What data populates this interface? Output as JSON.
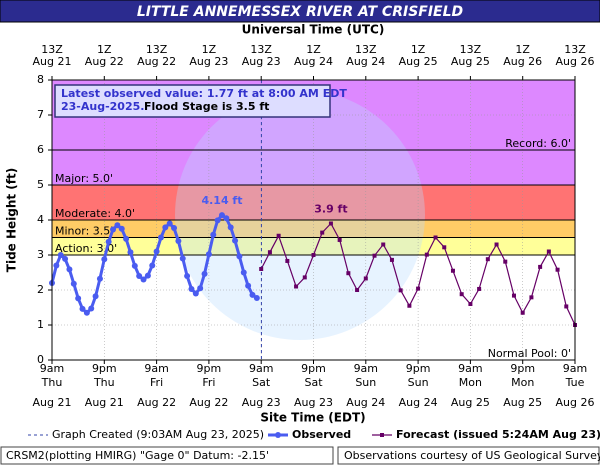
{
  "chart_data": {
    "type": "line",
    "title": "LITTLE ANNEMESSEX RIVER AT CRISFIELD",
    "x_label": "Site Time (EDT)",
    "x2_label": "Universal Time (UTC)",
    "y_label": "Tide Height (ft)",
    "xlim": [
      "Aug 21 09:00",
      "Aug 26 09:00"
    ],
    "ylim": [
      0,
      8
    ],
    "yticks": [
      0,
      1,
      2,
      3,
      4,
      5,
      6,
      7,
      8
    ],
    "grid": true,
    "xticks": [
      {
        "value": "Aug 21 09:00",
        "label": [
          "9am",
          "Thu",
          "Aug 21"
        ]
      },
      {
        "value": "Aug 21 21:00",
        "label": [
          "9pm",
          "Thu",
          "Aug 21"
        ]
      },
      {
        "value": "Aug 22 09:00",
        "label": [
          "9am",
          "Fri",
          "Aug 22"
        ]
      },
      {
        "value": "Aug 22 21:00",
        "label": [
          "9pm",
          "Fri",
          "Aug 22"
        ]
      },
      {
        "value": "Aug 23 09:00",
        "label": [
          "9am",
          "Sat",
          "Aug 23"
        ]
      },
      {
        "value": "Aug 23 21:00",
        "label": [
          "9pm",
          "Sat",
          "Aug 23"
        ]
      },
      {
        "value": "Aug 24 09:00",
        "label": [
          "9am",
          "Sun",
          "Aug 24"
        ]
      },
      {
        "value": "Aug 24 21:00",
        "label": [
          "9pm",
          "Sun",
          "Aug 24"
        ]
      },
      {
        "value": "Aug 25 09:00",
        "label": [
          "9am",
          "Mon",
          "Aug 25"
        ]
      },
      {
        "value": "Aug 25 21:00",
        "label": [
          "9pm",
          "Mon",
          "Aug 25"
        ]
      },
      {
        "value": "Aug 26 09:00",
        "label": [
          "9am",
          "Tue",
          "Aug 26"
        ]
      }
    ],
    "x2ticks": [
      {
        "value": "Aug 21 09:00",
        "label": [
          "13Z",
          "Aug 21"
        ]
      },
      {
        "value": "Aug 21 21:00",
        "label": [
          "1Z",
          "Aug 22"
        ]
      },
      {
        "value": "Aug 22 09:00",
        "label": [
          "13Z",
          "Aug 22"
        ]
      },
      {
        "value": "Aug 22 21:00",
        "label": [
          "1Z",
          "Aug 23"
        ]
      },
      {
        "value": "Aug 23 09:00",
        "label": [
          "13Z",
          "Aug 23"
        ]
      },
      {
        "value": "Aug 23 21:00",
        "label": [
          "1Z",
          "Aug 24"
        ]
      },
      {
        "value": "Aug 24 09:00",
        "label": [
          "13Z",
          "Aug 24"
        ]
      },
      {
        "value": "Aug 24 21:00",
        "label": [
          "1Z",
          "Aug 25"
        ]
      },
      {
        "value": "Aug 25 09:00",
        "label": [
          "13Z",
          "Aug 25"
        ]
      },
      {
        "value": "Aug 25 21:00",
        "label": [
          "1Z",
          "Aug 26"
        ]
      },
      {
        "value": "Aug 26 09:00",
        "label": [
          "13Z",
          "Aug 26"
        ]
      }
    ],
    "thresholds": [
      {
        "label": "Action: 3.0'",
        "value": 3.0,
        "color": "#ffff99"
      },
      {
        "label": "Minor: 3.5'",
        "value": 3.5,
        "color": "#ffcc66"
      },
      {
        "label": "Moderate: 4.0'",
        "value": 4.0,
        "color": "#ff7373"
      },
      {
        "label": "Major: 5.0'",
        "value": 5.0,
        "color": "#dd88ff"
      },
      {
        "label": "Record: 6.0'",
        "value": 6.0
      },
      {
        "label": "Normal Pool: 0'",
        "value": 0
      }
    ],
    "info_box": [
      "Latest observed value: 1.77 ft at 8:00 AM EDT",
      "23-Aug-2025.",
      "Flood Stage is 3.5 ft"
    ],
    "created_marker": {
      "label": "Graph Created (9:03AM Aug 23, 2025)",
      "x": "Aug 23 09:03"
    },
    "series": [
      {
        "name": "Observed",
        "color": "#4a5cf0",
        "marker": "circle",
        "x": [
          "Aug 21 09:00",
          "Aug 21 10:00",
          "Aug 21 11:00",
          "Aug 21 12:00",
          "Aug 21 13:00",
          "Aug 21 14:00",
          "Aug 21 15:00",
          "Aug 21 16:00",
          "Aug 21 17:00",
          "Aug 21 18:00",
          "Aug 21 19:00",
          "Aug 21 20:00",
          "Aug 21 21:00",
          "Aug 21 22:00",
          "Aug 21 23:00",
          "Aug 22 00:00",
          "Aug 22 01:00",
          "Aug 22 02:00",
          "Aug 22 03:00",
          "Aug 22 04:00",
          "Aug 22 05:00",
          "Aug 22 06:00",
          "Aug 22 07:00",
          "Aug 22 08:00",
          "Aug 22 09:00",
          "Aug 22 10:00",
          "Aug 22 11:00",
          "Aug 22 12:00",
          "Aug 22 13:00",
          "Aug 22 14:00",
          "Aug 22 15:00",
          "Aug 22 16:00",
          "Aug 22 17:00",
          "Aug 22 18:00",
          "Aug 22 19:00",
          "Aug 22 20:00",
          "Aug 22 21:00",
          "Aug 22 22:00",
          "Aug 22 23:00",
          "Aug 23 00:00",
          "Aug 23 01:00",
          "Aug 23 02:00",
          "Aug 23 03:00",
          "Aug 23 04:00",
          "Aug 23 05:00",
          "Aug 23 06:00",
          "Aug 23 07:00",
          "Aug 23 08:00"
        ],
        "values": [
          2.2,
          2.7,
          3.0,
          2.89,
          2.59,
          2.18,
          1.76,
          1.46,
          1.35,
          1.47,
          1.82,
          2.32,
          2.88,
          3.38,
          3.73,
          3.85,
          3.75,
          3.46,
          3.08,
          2.69,
          2.4,
          2.3,
          2.41,
          2.7,
          3.1,
          3.5,
          3.79,
          3.9,
          3.77,
          3.4,
          2.9,
          2.4,
          2.03,
          1.9,
          2.05,
          2.46,
          3.02,
          3.58,
          3.99,
          4.14,
          4.05,
          3.79,
          3.41,
          2.96,
          2.5,
          2.12,
          1.86,
          1.77
        ],
        "value_labels": [
          null,
          null,
          null,
          null,
          null,
          null,
          null,
          null,
          null,
          null,
          null,
          null,
          null,
          null,
          null,
          null,
          null,
          null,
          null,
          null,
          null,
          null,
          null,
          null,
          null,
          null,
          null,
          null,
          null,
          null,
          null,
          null,
          null,
          null,
          null,
          null,
          null,
          null,
          null,
          "4.14 ft",
          null,
          null,
          null,
          null,
          null,
          null,
          null,
          null
        ]
      },
      {
        "name": "Forecast (issued 5:24AM Aug 23)",
        "color": "#660066",
        "marker": "square",
        "x": [
          "Aug 23 09:00",
          "Aug 23 11:00",
          "Aug 23 13:00",
          "Aug 23 15:00",
          "Aug 23 17:00",
          "Aug 23 19:00",
          "Aug 23 21:00",
          "Aug 23 23:00",
          "Aug 24 01:00",
          "Aug 24 03:00",
          "Aug 24 05:00",
          "Aug 24 07:00",
          "Aug 24 09:00",
          "Aug 24 11:00",
          "Aug 24 13:00",
          "Aug 24 15:00",
          "Aug 24 17:00",
          "Aug 24 19:00",
          "Aug 24 21:00",
          "Aug 24 23:00",
          "Aug 25 01:00",
          "Aug 25 03:00",
          "Aug 25 05:00",
          "Aug 25 07:00",
          "Aug 25 09:00",
          "Aug 25 11:00",
          "Aug 25 13:00",
          "Aug 25 15:00",
          "Aug 25 17:00",
          "Aug 25 19:00",
          "Aug 25 21:00",
          "Aug 25 23:00",
          "Aug 26 01:00",
          "Aug 26 03:00",
          "Aug 26 05:00",
          "Aug 26 07:00",
          "Aug 26 09:00"
        ],
        "values": [
          2.6,
          3.08,
          3.55,
          2.83,
          2.1,
          2.36,
          3.0,
          3.64,
          3.9,
          3.43,
          2.48,
          2.0,
          2.33,
          2.98,
          3.3,
          2.86,
          1.99,
          1.55,
          2.04,
          3.01,
          3.5,
          3.22,
          2.55,
          1.88,
          1.6,
          2.03,
          2.88,
          3.3,
          2.81,
          1.84,
          1.35,
          1.79,
          2.66,
          3.1,
          2.58,
          1.53,
          1.0
        ],
        "value_labels": [
          null,
          null,
          null,
          null,
          null,
          null,
          null,
          null,
          "3.9 ft",
          null,
          null,
          null,
          null,
          null,
          null,
          null,
          null,
          null,
          null,
          null,
          null,
          null,
          null,
          null,
          null,
          null,
          null,
          null,
          null,
          null,
          null,
          null,
          null,
          null,
          null,
          null,
          null
        ]
      }
    ],
    "footer_left": "CRSM2(plotting HMIRG) \"Gage 0\" Datum: -2.15'",
    "footer_right": "Observations courtesy of US Geological Survey"
  }
}
